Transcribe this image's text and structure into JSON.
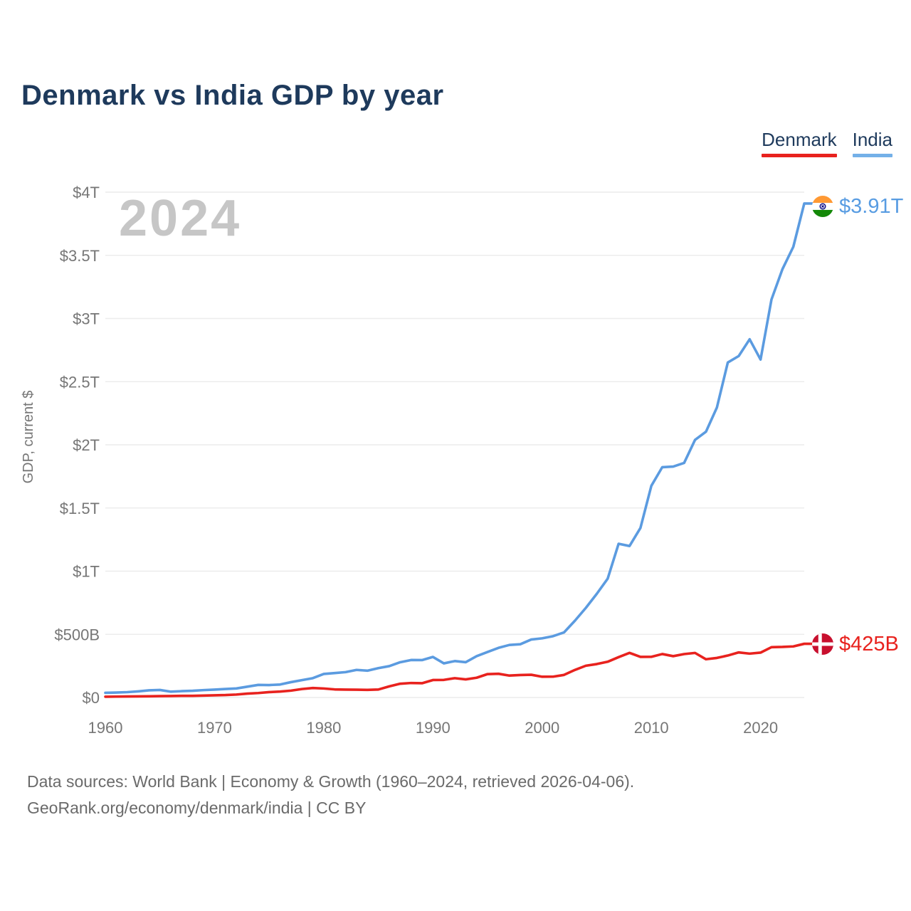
{
  "header": {
    "title": "Denmark vs India GDP by year"
  },
  "legend": {
    "items": [
      {
        "label": "Denmark",
        "color": "#e8221e"
      },
      {
        "label": "India",
        "color": "#74b0e8"
      }
    ]
  },
  "footer": {
    "line1": "Data sources: World Bank | Economy & Growth (1960–2024, retrieved 2026-04-06).",
    "line2": "GeoRank.org/economy/denmark/india | CC BY"
  },
  "icons": {
    "india_flag": "india-flag-icon",
    "denmark_flag": "denmark-flag-icon"
  },
  "colors": {
    "title_text": "#1e3a5c",
    "tick_text": "#767676",
    "gridline": "#ececec",
    "watermark": "#c6c6c6",
    "denmark_line": "#e8221e",
    "india_line": "#5b9be0"
  },
  "chart_data": {
    "type": "line",
    "title": "Denmark vs India GDP by year",
    "xlabel": "",
    "ylabel": "GDP, current $",
    "watermark": "2024",
    "unit": "billions of current US$",
    "grid": true,
    "legend_position": "top-right",
    "xlim": [
      1960,
      2024
    ],
    "ylim_billions": [
      0,
      4000
    ],
    "x_ticks": [
      1960,
      1970,
      1980,
      1990,
      2000,
      2010,
      2020
    ],
    "y_ticks": [
      {
        "v": 0,
        "label": "$0"
      },
      {
        "v": 500,
        "label": "$500B"
      },
      {
        "v": 1000,
        "label": "$1T"
      },
      {
        "v": 1500,
        "label": "$1.5T"
      },
      {
        "v": 2000,
        "label": "$2T"
      },
      {
        "v": 2500,
        "label": "$2.5T"
      },
      {
        "v": 3000,
        "label": "$3T"
      },
      {
        "v": 3500,
        "label": "$3.5T"
      },
      {
        "v": 4000,
        "label": "$4T"
      }
    ],
    "years": [
      1960,
      1961,
      1962,
      1963,
      1964,
      1965,
      1966,
      1967,
      1968,
      1969,
      1970,
      1971,
      1972,
      1973,
      1974,
      1975,
      1976,
      1977,
      1978,
      1979,
      1980,
      1981,
      1982,
      1983,
      1984,
      1985,
      1986,
      1987,
      1988,
      1989,
      1990,
      1991,
      1992,
      1993,
      1994,
      1995,
      1996,
      1997,
      1998,
      1999,
      2000,
      2001,
      2002,
      2003,
      2004,
      2005,
      2006,
      2007,
      2008,
      2009,
      2010,
      2011,
      2012,
      2013,
      2014,
      2015,
      2016,
      2017,
      2018,
      2019,
      2020,
      2021,
      2022,
      2023,
      2024
    ],
    "series": [
      {
        "name": "Denmark",
        "color": "#e8221e",
        "end_label": "$425B",
        "values": [
          6.2,
          7.0,
          7.9,
          8.6,
          9.7,
          10.7,
          11.8,
          12.8,
          13.2,
          15.0,
          17.1,
          19.2,
          23.3,
          30.7,
          35.2,
          42.5,
          46.6,
          54.2,
          66.8,
          75.2,
          71.1,
          64.0,
          62.1,
          61.6,
          60.4,
          63.1,
          88.2,
          109.0,
          114.7,
          112.9,
          138.2,
          139.3,
          152.9,
          143.2,
          156.3,
          185.1,
          187.8,
          173.4,
          177.6,
          179.9,
          164.2,
          164.8,
          178.6,
          218.1,
          251.4,
          264.5,
          282.9,
          319.4,
          353.4,
          321.2,
          321.9,
          344.0,
          327.1,
          343.6,
          352.8,
          302.7,
          313.1,
          332.1,
          356.8,
          347.2,
          355.2,
          398.3,
          400.2,
          404.2,
          425.0
        ]
      },
      {
        "name": "India",
        "color": "#5b9be0",
        "end_label": "$3.91T",
        "values": [
          37.0,
          39.2,
          42.2,
          48.4,
          56.5,
          59.6,
          45.9,
          50.1,
          53.1,
          58.4,
          62.4,
          67.4,
          71.5,
          85.5,
          99.5,
          98.5,
          102.7,
          121.5,
          137.3,
          152.9,
          186.3,
          193.5,
          200.7,
          218.3,
          212.2,
          232.5,
          248.2,
          279.0,
          296.6,
          296.0,
          321.0,
          270.1,
          288.2,
          279.3,
          327.3,
          360.3,
          392.9,
          415.9,
          421.4,
          458.8,
          468.4,
          485.4,
          514.9,
          607.7,
          709.1,
          820.4,
          940.3,
          1216.7,
          1198.9,
          1341.9,
          1675.6,
          1823.1,
          1827.6,
          1856.7,
          2039.1,
          2103.6,
          2294.8,
          2651.5,
          2702.9,
          2835.6,
          2674.9,
          3150.3,
          3389.7,
          3567.6,
          3910.0
        ]
      }
    ]
  }
}
